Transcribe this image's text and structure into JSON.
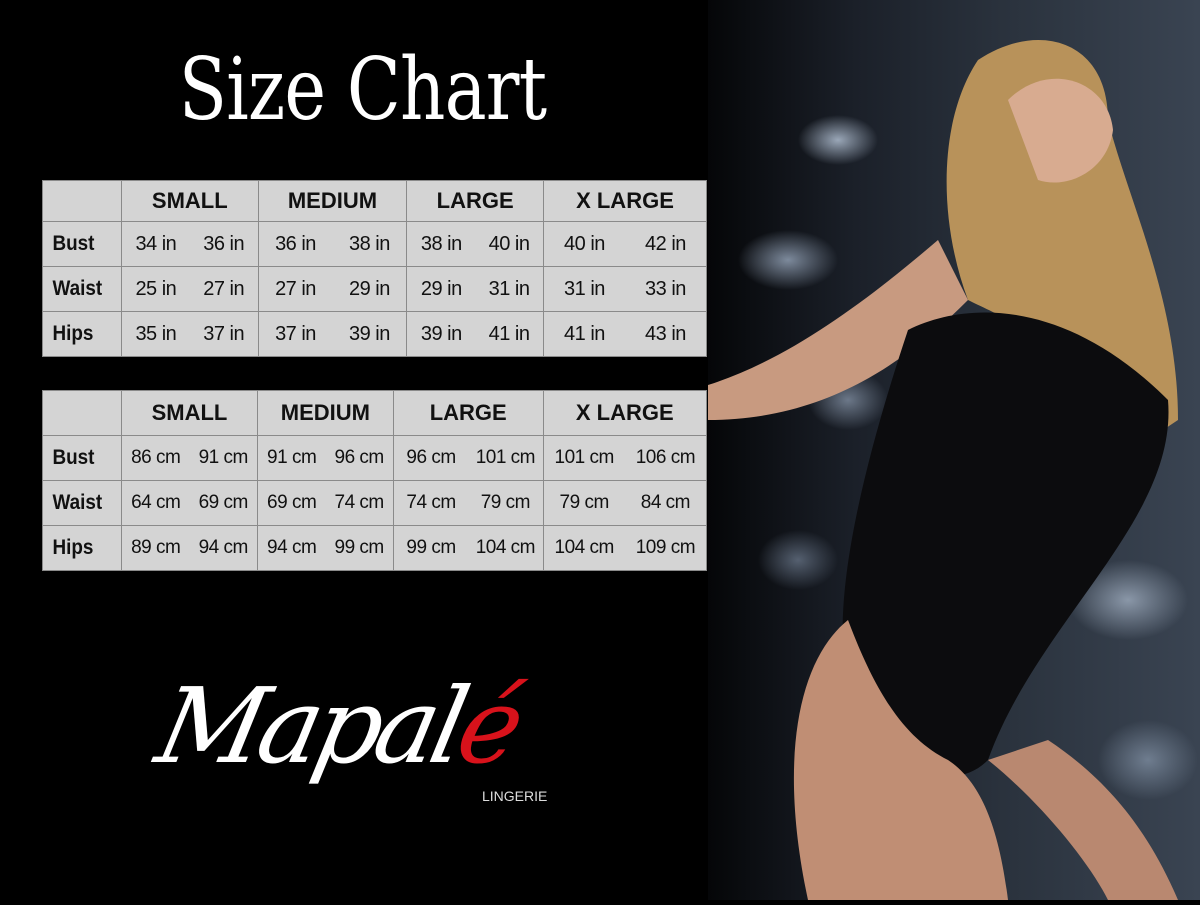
{
  "title": "Size Chart",
  "sizes": [
    "SMALL",
    "MEDIUM",
    "LARGE",
    "X LARGE"
  ],
  "inches": {
    "rows": [
      {
        "label": "Bust",
        "values": [
          "34 in",
          "36 in",
          "36 in",
          "38 in",
          "38 in",
          "40 in",
          "40 in",
          "42 in"
        ]
      },
      {
        "label": "Waist",
        "values": [
          "25 in",
          "27 in",
          "27 in",
          "29 in",
          "29 in",
          "31 in",
          "31 in",
          "33 in"
        ]
      },
      {
        "label": "Hips",
        "values": [
          "35 in",
          "37 in",
          "37 in",
          "39 in",
          "39 in",
          "41 in",
          "41 in",
          "43 in"
        ]
      }
    ]
  },
  "centimeters": {
    "rows": [
      {
        "label": "Bust",
        "values": [
          "86 cm",
          "91 cm",
          "91 cm",
          "96 cm",
          "96 cm",
          "101 cm",
          "101 cm",
          "106 cm"
        ]
      },
      {
        "label": "Waist",
        "values": [
          "64 cm",
          "69 cm",
          "69 cm",
          "74 cm",
          "74 cm",
          "79 cm",
          "79 cm",
          "84 cm"
        ]
      },
      {
        "label": "Hips",
        "values": [
          "89 cm",
          "94 cm",
          "94 cm",
          "99 cm",
          "99 cm",
          "104 cm",
          "104 cm",
          "109 cm"
        ]
      }
    ]
  },
  "brand": {
    "name_main": "Mapal",
    "name_accent": "é",
    "tagline": "LINGERIE",
    "accent_color": "#d8121b"
  }
}
